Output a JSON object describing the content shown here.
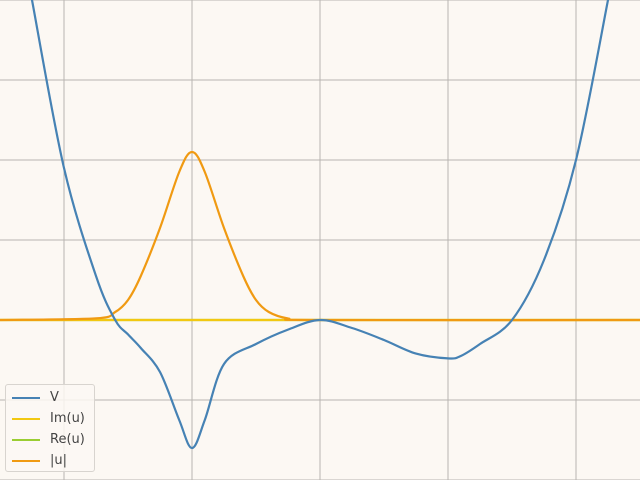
{
  "chart_data": {
    "type": "line",
    "title": "",
    "xlabel": "",
    "ylabel": "",
    "xlim": [
      -2.5,
      2.5
    ],
    "ylim": [
      -2,
      4
    ],
    "grid": true,
    "legend_position": "bottom-left",
    "series": [
      {
        "name": "V",
        "color": "#4682b4",
        "x": [
          -2.25,
          -2.0,
          -1.75,
          -1.6,
          -1.5,
          -1.4,
          -1.25,
          -1.1,
          -1.0,
          -0.9,
          -0.75,
          -0.5,
          -0.25,
          0.0,
          0.25,
          0.5,
          0.75,
          1.0,
          1.1,
          1.25,
          1.5,
          1.75,
          2.0,
          2.25
        ],
        "y": [
          4.0,
          1.9,
          0.55,
          0.0,
          -0.18,
          -0.35,
          -0.65,
          -1.25,
          -1.6,
          -1.25,
          -0.55,
          -0.3,
          -0.12,
          0.0,
          -0.1,
          -0.25,
          -0.42,
          -0.48,
          -0.45,
          -0.3,
          0.0,
          0.75,
          2.0,
          4.0
        ]
      },
      {
        "name": "Im(u)",
        "color": "#f2c811",
        "x": [
          -2.5,
          2.5
        ],
        "y": [
          0,
          0
        ]
      },
      {
        "name": "Re(u)",
        "color": "#9acd32",
        "x": [
          -2.5,
          2.5
        ],
        "y": [
          0,
          0
        ]
      },
      {
        "name": "|u|",
        "color": "#f09a12",
        "x": [
          -2.5,
          -1.75,
          -1.6,
          -1.5,
          -1.4,
          -1.25,
          -1.1,
          -1.0,
          -0.9,
          -0.75,
          -0.6,
          -0.5,
          -0.4,
          -0.25,
          0.0,
          2.5
        ],
        "y": [
          0,
          0.02,
          0.1,
          0.25,
          0.55,
          1.15,
          1.85,
          2.1,
          1.85,
          1.15,
          0.55,
          0.25,
          0.1,
          0.02,
          0,
          0
        ]
      }
    ]
  }
}
